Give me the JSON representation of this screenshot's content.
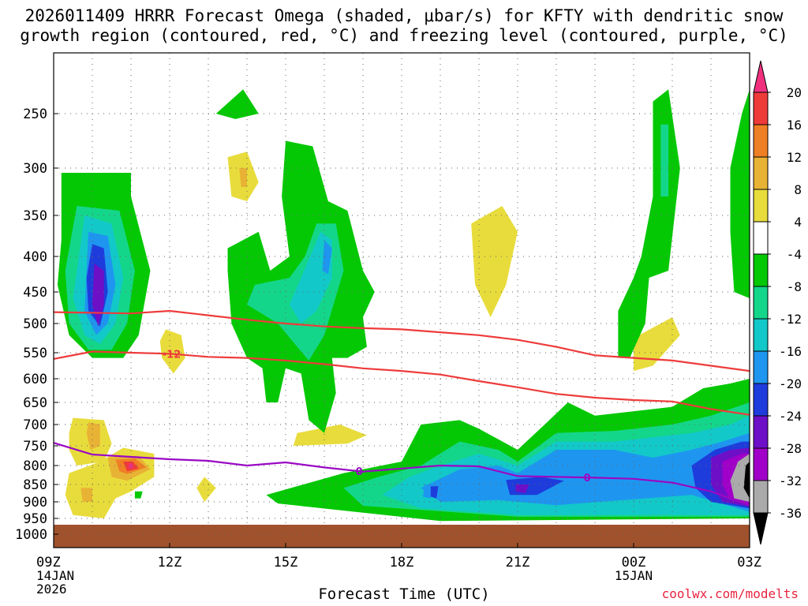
{
  "title": {
    "line1": "2026011409 HRRR Forecast Omega (shaded, μbar/s) for KFTY with dendritic snow",
    "line2": "growth region (contoured, red, °C) and freezing level (contoured, purple, °C)"
  },
  "xlabel": "Forecast Time (UTC)",
  "credit": "coolwx.com/modelts",
  "chart_data": {
    "type": "contour-time-height",
    "title": "2026011409 HRRR Forecast Omega (shaded, μbar/s) for KFTY with dendritic snow growth region (contoured, red, °C) and freezing level (contoured, purple, °C)",
    "xlabel": "Forecast Time (UTC)",
    "ylabel": "Pressure (hPa)",
    "x_ticks": [
      {
        "hour": 0,
        "label": "09Z",
        "sub": [
          "14JAN",
          "2026"
        ]
      },
      {
        "hour": 3,
        "label": "12Z",
        "sub": []
      },
      {
        "hour": 6,
        "label": "15Z",
        "sub": []
      },
      {
        "hour": 9,
        "label": "18Z",
        "sub": []
      },
      {
        "hour": 12,
        "label": "21Z",
        "sub": []
      },
      {
        "hour": 15,
        "label": "00Z",
        "sub": [
          "15JAN"
        ]
      },
      {
        "hour": 18,
        "label": "03Z",
        "sub": []
      }
    ],
    "xlim": [
      0,
      18
    ],
    "y_ticks": [
      250,
      300,
      350,
      400,
      450,
      500,
      550,
      600,
      650,
      700,
      750,
      800,
      850,
      900,
      950,
      1000
    ],
    "ylim": [
      200,
      1025
    ],
    "surface_pressure": 970,
    "colorbar": {
      "labels": [
        "20",
        "16",
        "12",
        "8",
        "4",
        "-4",
        "-8",
        "-12",
        "-16",
        "-20",
        "-24",
        "-28",
        "-32",
        "-36"
      ],
      "colors": [
        "#f0307f",
        "#ef3a3a",
        "#ef7f24",
        "#e8b234",
        "#e8dc3c",
        "#ffffff",
        "#05c805",
        "#14d68a",
        "#12c8c8",
        "#1e96f0",
        "#1e3cdc",
        "#6e0fc8",
        "#a000c8",
        "#aaaaaa",
        "#000000"
      ]
    },
    "contours": [
      {
        "name": "dendritic-upper",
        "value": -12,
        "color": "#ee3b3b",
        "points": [
          [
            0,
            482
          ],
          [
            1,
            483
          ],
          [
            2,
            484
          ],
          [
            3,
            480
          ],
          [
            4,
            487
          ],
          [
            5,
            494
          ],
          [
            6,
            500
          ],
          [
            7,
            505
          ],
          [
            8,
            508
          ],
          [
            9,
            510
          ],
          [
            10,
            515
          ],
          [
            11,
            520
          ],
          [
            12,
            528
          ],
          [
            13,
            540
          ],
          [
            14,
            555
          ],
          [
            15,
            560
          ],
          [
            16,
            565
          ],
          [
            17,
            575
          ],
          [
            18,
            585
          ]
        ]
      },
      {
        "name": "dendritic-lower",
        "value": -12,
        "label": "-12",
        "color": "#ee3b3b",
        "points": [
          [
            0,
            562
          ],
          [
            1,
            548
          ],
          [
            2,
            550
          ],
          [
            3,
            552
          ],
          [
            4,
            558
          ],
          [
            5,
            560
          ],
          [
            6,
            565
          ],
          [
            7,
            572
          ],
          [
            8,
            580
          ],
          [
            9,
            585
          ],
          [
            10,
            592
          ],
          [
            11,
            605
          ],
          [
            12,
            618
          ],
          [
            13,
            632
          ],
          [
            14,
            640
          ],
          [
            15,
            645
          ],
          [
            16,
            648
          ],
          [
            17,
            665
          ],
          [
            18,
            678
          ]
        ]
      },
      {
        "name": "freezing-level",
        "value": 0,
        "label": "0",
        "color": "#9a08c4",
        "points": [
          [
            0,
            743
          ],
          [
            1,
            772
          ],
          [
            2,
            778
          ],
          [
            3,
            784
          ],
          [
            4,
            788
          ],
          [
            5,
            800
          ],
          [
            6,
            792
          ],
          [
            7,
            805
          ],
          [
            8,
            816
          ],
          [
            9,
            808
          ],
          [
            10,
            800
          ],
          [
            11,
            802
          ],
          [
            12,
            828
          ],
          [
            13,
            830
          ],
          [
            14,
            832
          ],
          [
            15,
            835
          ],
          [
            16,
            845
          ],
          [
            17,
            870
          ],
          [
            18,
            910
          ]
        ]
      }
    ]
  }
}
